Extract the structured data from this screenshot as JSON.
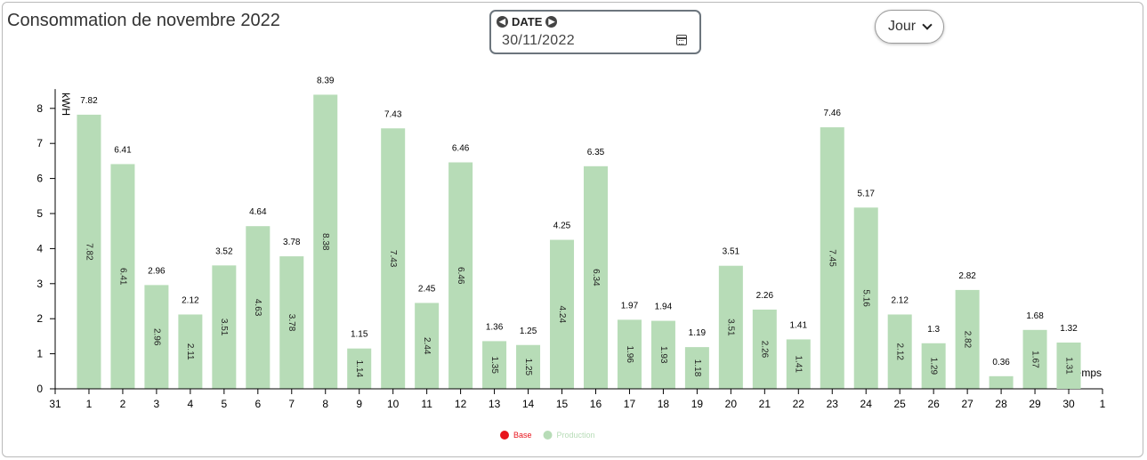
{
  "header": {
    "title": "Consommation de novembre 2022",
    "date_label": "DATE",
    "date_value": "30/11/2022",
    "period_select": "Jour"
  },
  "icons": {
    "prev": "arrow-left-circle-icon",
    "next": "arrow-right-circle-icon",
    "calendar": "calendar-icon",
    "dropdown": "chevron-down-icon"
  },
  "chart_data": {
    "type": "bar",
    "title": "",
    "ylabel": "kWH",
    "xlabel": "Temps",
    "ylim": [
      0,
      8.5
    ],
    "y_ticks": [
      0,
      1,
      2,
      3,
      4,
      5,
      6,
      7,
      8
    ],
    "x_edge_ticks": [
      "31",
      "1"
    ],
    "categories": [
      "1",
      "2",
      "3",
      "4",
      "5",
      "6",
      "7",
      "8",
      "9",
      "10",
      "11",
      "12",
      "13",
      "14",
      "15",
      "16",
      "17",
      "18",
      "19",
      "20",
      "21",
      "22",
      "23",
      "24",
      "25",
      "26",
      "27",
      "28",
      "29",
      "30"
    ],
    "series": [
      {
        "name": "Production",
        "color": "#b7dcb7",
        "values": [
          7.82,
          6.41,
          2.96,
          2.12,
          3.52,
          4.64,
          3.78,
          8.39,
          1.15,
          7.43,
          2.45,
          6.46,
          1.36,
          1.25,
          4.25,
          6.35,
          1.97,
          1.94,
          1.19,
          3.51,
          2.26,
          1.41,
          7.46,
          5.17,
          2.12,
          1.3,
          2.82,
          0.36,
          1.68,
          1.32
        ],
        "inner_labels": [
          "7.82",
          "6.41",
          "2.96",
          "2.11",
          "3.51",
          "4.63",
          "3.78",
          "8.38",
          "1.14",
          "7.43",
          "2.44",
          "6.46",
          "1.35",
          "1.25",
          "4.24",
          "6.34",
          "1.96",
          "1.93",
          "1.18",
          "3.51",
          "2.26",
          "1.41",
          "7.45",
          "5.16",
          "2.12",
          "1.29",
          "2.82",
          "",
          "1.67",
          "1.31"
        ]
      }
    ],
    "legend": [
      {
        "name": "Base",
        "color": "#e8141c"
      },
      {
        "name": "Production",
        "color": "#b7dcb7"
      }
    ],
    "legend_position": "bottom",
    "grid": false
  }
}
